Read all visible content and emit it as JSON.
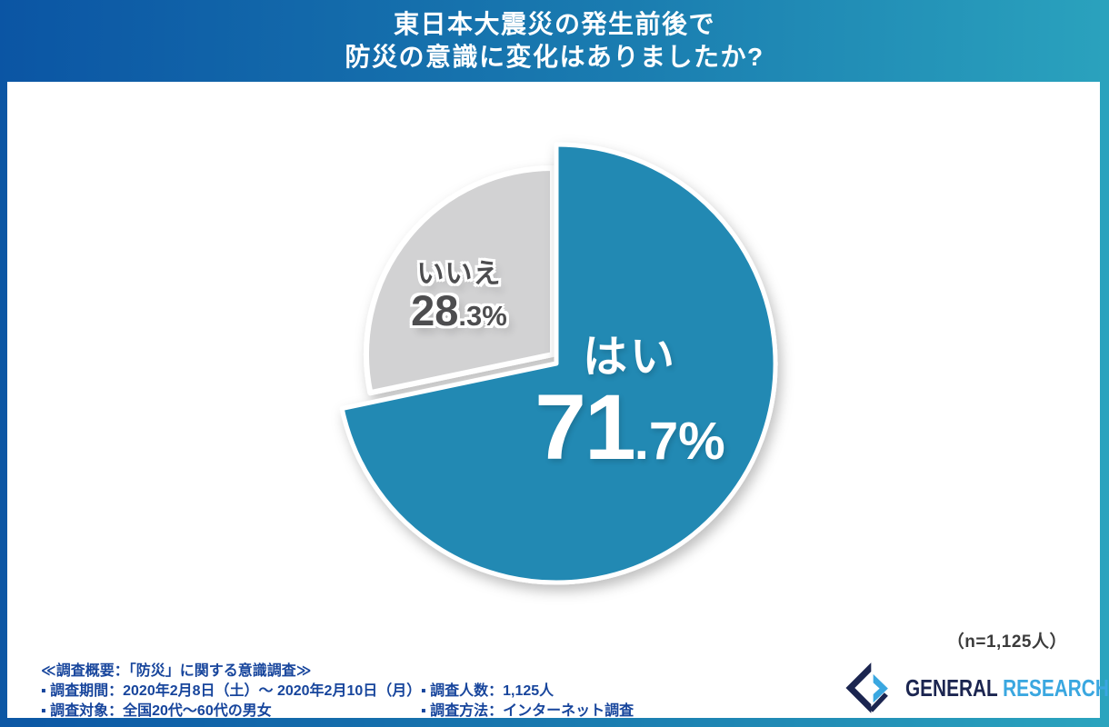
{
  "header": {
    "title_line1": "東日本大震災の発生前後で",
    "title_line2": "防災の意識に変化はありましたか?"
  },
  "chart_data": {
    "type": "pie",
    "title": "東日本大震災の発生前後で防災の意識に変化はありましたか?",
    "labels": [
      "はい",
      "いいえ"
    ],
    "values": [
      71.7,
      28.3
    ],
    "unit": "%",
    "n_total": "1,125",
    "colors": {
      "yes": "#2289b3",
      "no": "#d2d2d3"
    },
    "legend_position": "none",
    "label_style": "inside"
  },
  "pie_labels": {
    "yes": {
      "name": "はい",
      "int": "71",
      "frac": ".7%"
    },
    "no": {
      "name": "いいえ",
      "int": "28",
      "frac": ".3%"
    }
  },
  "sample_note": "（n=1,125人）",
  "survey": {
    "heading": "≪調査概要：「防災」に関する意識調査≫",
    "rows": [
      {
        "left": "▪ 調査期間：2020年2月8日（土）～ 2020年2月10日（月）",
        "right": "▪ 調査人数：1,125人"
      },
      {
        "left": "▪ 調査対象：全国20代～60代の男女",
        "right": "▪ 調査方法：インターネット調査"
      }
    ]
  },
  "logo": {
    "part1": "GENERAL",
    "part2": "RESEARCH",
    "navy": "#1b2550",
    "blue": "#3aa7e0"
  }
}
